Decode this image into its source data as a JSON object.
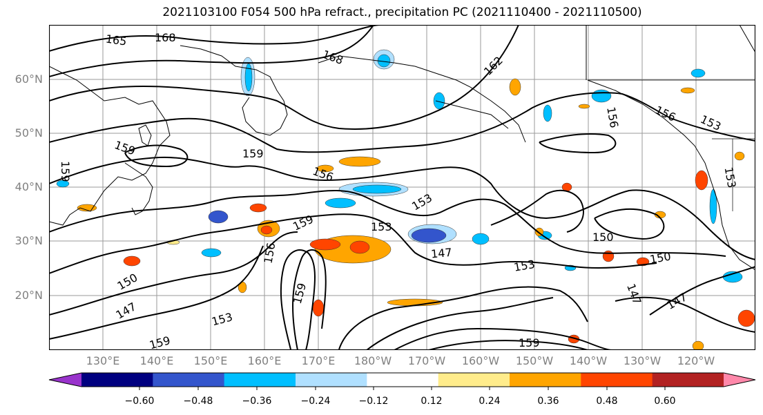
{
  "title": "2021103100 F054 500 hPa refract., precipitation PC (2021110400 - 2021110500)",
  "lat_labels": [
    "60°N",
    "50°N",
    "40°N",
    "30°N",
    "20°N"
  ],
  "lon_labels": [
    "130°E",
    "140°E",
    "150°E",
    "160°E",
    "170°E",
    "180°W",
    "170°W",
    "160°W",
    "150°W",
    "140°W",
    "130°W",
    "120°W"
  ],
  "contour_labels": [
    "165",
    "168",
    "168",
    "162",
    "159",
    "159",
    "159",
    "156",
    "156",
    "156",
    "153",
    "153",
    "153",
    "159",
    "156",
    "153",
    "147",
    "150",
    "150",
    "153",
    "150",
    "147",
    "147",
    "147",
    "159",
    "153",
    "159",
    "159"
  ],
  "colorbar": {
    "colors": [
      "#9933cc",
      "#000080",
      "#3355cc",
      "#00bfff",
      "#b0e0ff",
      "#ffffff",
      "#ffec8b",
      "#ffa500",
      "#ff4500",
      "#b22222",
      "#ff88aa"
    ],
    "tick_labels": [
      "−0.60",
      "−0.48",
      "−0.36",
      "−0.24",
      "−0.12",
      "0.12",
      "0.24",
      "0.36",
      "0.48",
      "0.60"
    ]
  }
}
